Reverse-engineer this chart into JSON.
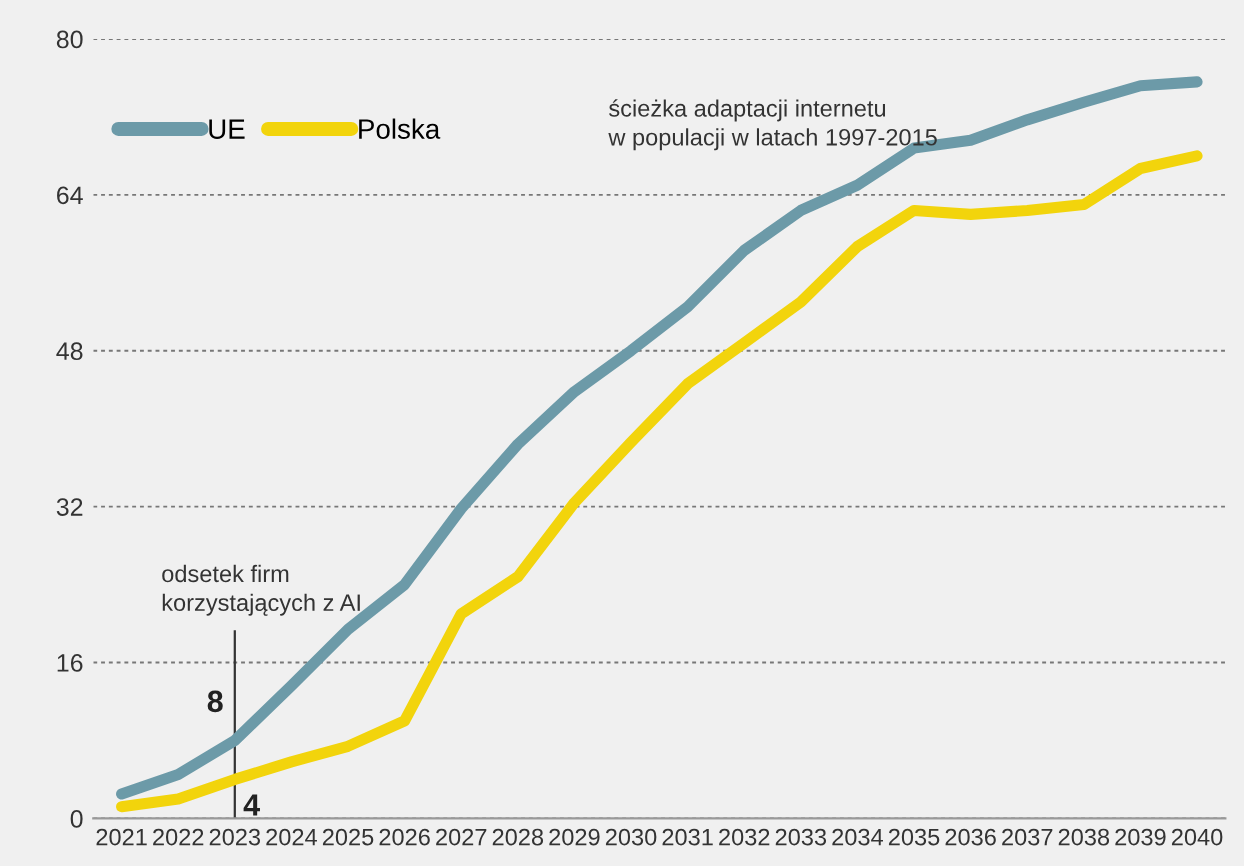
{
  "chart_data": {
    "type": "line",
    "categories": [
      "2021",
      "2022",
      "2023",
      "2024",
      "2025",
      "2026",
      "2027",
      "2028",
      "2029",
      "2030",
      "2031",
      "2032",
      "2033",
      "2034",
      "2035",
      "2036",
      "2037",
      "2038",
      "2039",
      "2040"
    ],
    "series": [
      {
        "name": "UE",
        "color": "#6c9aa8",
        "values": [
          2.5,
          4.5,
          8,
          13.6,
          19.4,
          24,
          31.8,
          38.4,
          43.8,
          48,
          52.5,
          58.3,
          62.4,
          65,
          68.8,
          69.6,
          71.7,
          73.5,
          75.2,
          75.6
        ],
        "value_labels": [
          null,
          null,
          "8",
          null,
          null,
          null,
          null,
          null,
          null,
          null,
          null,
          null,
          null,
          null,
          null,
          null,
          null,
          null,
          null,
          null
        ]
      },
      {
        "name": "Polska",
        "color": "#f2d40c",
        "values": [
          1.2,
          2,
          4,
          5.8,
          7.4,
          10,
          21,
          24.8,
          32.4,
          38.6,
          44.6,
          48.8,
          53,
          58.7,
          62.4,
          62,
          62.4,
          63,
          66.7,
          68
        ],
        "value_labels": [
          null,
          null,
          "4",
          null,
          null,
          null,
          null,
          null,
          null,
          null,
          null,
          null,
          null,
          null,
          null,
          null,
          null,
          null,
          null,
          null
        ]
      }
    ],
    "ylim": [
      0,
      80
    ],
    "yticks": [
      0,
      16,
      32,
      48,
      64,
      80
    ],
    "grid": "y",
    "legend": "top left",
    "ref_lines": [
      {
        "axis": "x",
        "value": "2023",
        "label": "odsetek firm\nkorzystających z AI"
      }
    ],
    "annotations": [
      "ścieżka adaptacji internetu\nw populacji w latach 1997-2015"
    ]
  }
}
